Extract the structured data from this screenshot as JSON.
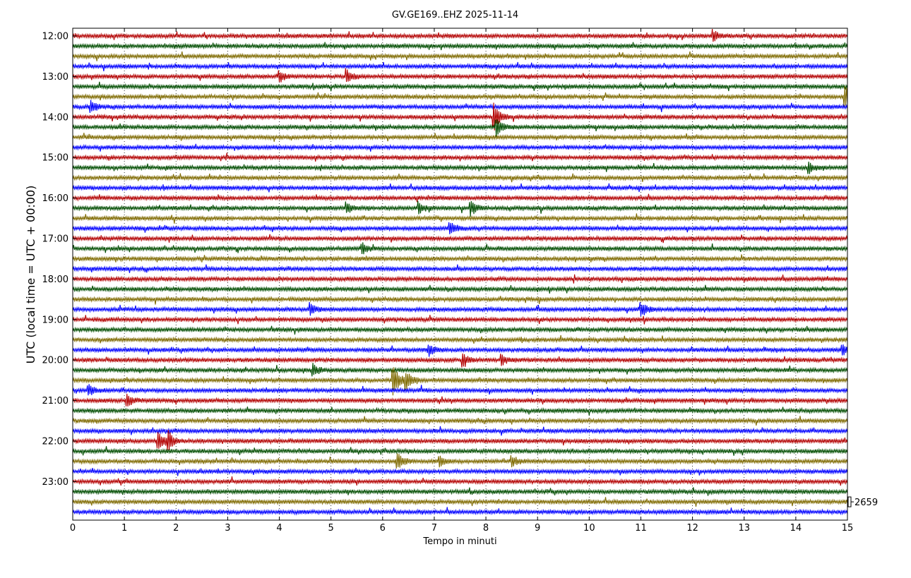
{
  "chart_data": {
    "type": "line",
    "title": "GV.GE169..EHZ 2025-11-14",
    "xlabel": "Tempo in minuti",
    "ylabel": "UTC (local time = UTC + 00:00)",
    "xlim": [
      0,
      15
    ],
    "x_ticks": [
      "0",
      "1",
      "2",
      "3",
      "4",
      "5",
      "6",
      "7",
      "8",
      "9",
      "10",
      "11",
      "12",
      "13",
      "14",
      "15"
    ],
    "hour_labels": [
      "12:00",
      "13:00",
      "14:00",
      "15:00",
      "16:00",
      "17:00",
      "18:00",
      "19:00",
      "20:00",
      "21:00",
      "22:00",
      "23:00"
    ],
    "traces_per_hour": 4,
    "trace_count": 48,
    "trace_colors": [
      "#b30000",
      "#004d00",
      "#7f6a00",
      "#0000ff"
    ],
    "scale_label": "2659",
    "grid": "vertical dotted at each minute",
    "events": [
      {
        "trace": 34,
        "minute": 6.2,
        "amp": 5.5
      },
      {
        "trace": 34,
        "minute": 6.45,
        "amp": 3.0
      },
      {
        "trace": 40,
        "minute": 1.65,
        "amp": 3.5
      },
      {
        "trace": 40,
        "minute": 1.85,
        "amp": 3.0
      },
      {
        "trace": 42,
        "minute": 6.28,
        "amp": 3.0
      },
      {
        "trace": 42,
        "minute": 8.5,
        "amp": 2.0
      },
      {
        "trace": 42,
        "minute": 7.1,
        "amp": 1.8
      },
      {
        "trace": 6,
        "minute": 14.95,
        "amp": 4.0
      },
      {
        "trace": 8,
        "minute": 8.15,
        "amp": 5.0
      },
      {
        "trace": 7,
        "minute": 0.35,
        "amp": 2.0
      },
      {
        "trace": 17,
        "minute": 7.7,
        "amp": 2.5
      },
      {
        "trace": 17,
        "minute": 6.7,
        "amp": 1.8
      },
      {
        "trace": 17,
        "minute": 5.3,
        "amp": 1.8
      },
      {
        "trace": 19,
        "minute": 7.3,
        "amp": 2.5
      },
      {
        "trace": 27,
        "minute": 11.0,
        "amp": 2.5
      },
      {
        "trace": 27,
        "minute": 4.6,
        "amp": 2.0
      },
      {
        "trace": 31,
        "minute": 6.9,
        "amp": 2.0
      },
      {
        "trace": 31,
        "minute": 14.9,
        "amp": 2.0
      },
      {
        "trace": 32,
        "minute": 7.55,
        "amp": 2.0
      },
      {
        "trace": 32,
        "minute": 8.3,
        "amp": 1.8
      },
      {
        "trace": 33,
        "minute": 4.65,
        "amp": 2.0
      },
      {
        "trace": 35,
        "minute": 0.3,
        "amp": 2.0
      },
      {
        "trace": 36,
        "minute": 1.05,
        "amp": 2.0
      },
      {
        "trace": 4,
        "minute": 4.0,
        "amp": 2.0
      },
      {
        "trace": 4,
        "minute": 5.3,
        "amp": 2.5
      },
      {
        "trace": 0,
        "minute": 12.4,
        "amp": 1.8
      },
      {
        "trace": 9,
        "minute": 8.2,
        "amp": 3.0
      },
      {
        "trace": 21,
        "minute": 5.6,
        "amp": 1.8
      },
      {
        "trace": 13,
        "minute": 14.25,
        "amp": 1.8
      }
    ]
  }
}
